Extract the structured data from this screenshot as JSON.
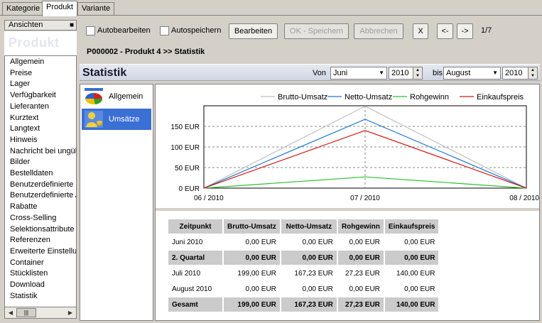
{
  "tabs": [
    "Kategorie",
    "Produkt",
    "Variante"
  ],
  "left": {
    "ansichten_label": "Ansichten",
    "header_word": "Produkt",
    "items": [
      "Allgemein",
      "Preise",
      "Lager",
      "Verfügbarkeit",
      "Lieferanten",
      "Kurztext",
      "Langtext",
      "Hinweis",
      "Nachricht bei ungült",
      "Bilder",
      "Bestelldaten",
      "Benutzerdefinierte P",
      "Benutzerdefinierte A",
      "Rabatte",
      "Cross-Selling",
      "Selektionsattribute",
      "Referenzen",
      "Erweiterte Einstellun",
      "Container",
      "Stücklisten",
      "Download",
      "Statistik"
    ]
  },
  "toolbar": {
    "autobearbeiten": "Autobearbeiten",
    "autospeichern": "Autospeichern",
    "bearbeiten": "Bearbeiten",
    "ok_speichern": "OK - Speichern",
    "abbrechen": "Abbrechen",
    "close": "X",
    "prev": "<-",
    "next": "->",
    "pager": "1/7"
  },
  "product_title": "P000002 - Produkt 4 >> Statistik",
  "stat_bar": {
    "title": "Statistik",
    "von_label": "Von",
    "von_month": "Juni",
    "von_year": "2010",
    "bis_label": "bis",
    "bis_month": "August",
    "bis_year": "2010"
  },
  "side_items": [
    {
      "label": "Allgemein",
      "icon": "pie-chart-icon"
    },
    {
      "label": "Umsätze",
      "icon": "coins-user-icon"
    }
  ],
  "chart_data": {
    "type": "line",
    "categories": [
      "06 / 2010",
      "07 / 2010",
      "08 / 2010"
    ],
    "ylim": [
      0,
      200
    ],
    "yticks": [
      0,
      50,
      100,
      150
    ],
    "ytick_labels": [
      "0 EUR",
      "50 EUR",
      "100 EUR",
      "150 EUR"
    ],
    "legend_placement": "top",
    "grid": true,
    "series": [
      {
        "name": "Brutto-Umsatz",
        "color": "#c0c0c0",
        "values": [
          0,
          199,
          0
        ]
      },
      {
        "name": "Netto-Umsatz",
        "color": "#1f77d0",
        "values": [
          0,
          167.23,
          0
        ]
      },
      {
        "name": "Rohgewinn",
        "color": "#2fc02f",
        "values": [
          0,
          27.23,
          0
        ]
      },
      {
        "name": "Einkaufspreis",
        "color": "#d01a1a",
        "values": [
          0,
          140,
          0
        ]
      }
    ]
  },
  "table": {
    "headers": [
      "Zeitpunkt",
      "Brutto-Umsatz",
      "Netto-Umsatz",
      "Rohgewinn",
      "Einkaufspreis"
    ],
    "rows": [
      {
        "shade": false,
        "cells": [
          "Juni 2010",
          "0,00 EUR",
          "0,00 EUR",
          "0,00 EUR",
          "0,00 EUR"
        ]
      },
      {
        "shade": true,
        "cells": [
          "2. Quartal",
          "0,00 EUR",
          "0,00 EUR",
          "0,00 EUR",
          "0,00 EUR"
        ]
      },
      {
        "shade": false,
        "cells": [
          "Juli 2010",
          "199,00 EUR",
          "167,23 EUR",
          "27,23 EUR",
          "140,00 EUR"
        ]
      },
      {
        "shade": false,
        "cells": [
          "August 2010",
          "0,00 EUR",
          "0,00 EUR",
          "0,00 EUR",
          "0,00 EUR"
        ]
      },
      {
        "shade": true,
        "cells": [
          "Gesamt",
          "199,00 EUR",
          "167,23 EUR",
          "27,23 EUR",
          "140,00 EUR"
        ]
      }
    ]
  }
}
